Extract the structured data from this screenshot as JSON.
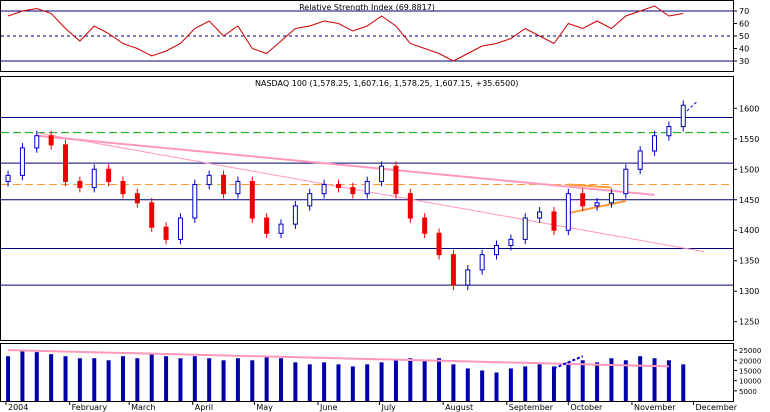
{
  "chart_data": [
    {
      "panel": "rsi",
      "type": "line",
      "title": "Relative Strength Index (69.8817)",
      "ylim": [
        22,
        78
      ],
      "y_ticks": [
        30,
        40,
        50,
        60,
        70
      ],
      "reference_lines": [
        {
          "value": 70,
          "style": "solid"
        },
        {
          "value": 50,
          "style": "dashed"
        },
        {
          "value": 30,
          "style": "solid"
        }
      ],
      "grid": false,
      "series": [
        {
          "color": "#cc0000",
          "x": [
            "2004-01-02",
            "2004-01-09",
            "2004-01-16",
            "2004-01-23",
            "2004-01-30",
            "2004-02-06",
            "2004-02-13",
            "2004-02-20",
            "2004-02-27",
            "2004-03-05",
            "2004-03-12",
            "2004-03-19",
            "2004-03-26",
            "2004-04-02",
            "2004-04-09",
            "2004-04-16",
            "2004-04-23",
            "2004-04-30",
            "2004-05-07",
            "2004-05-14",
            "2004-05-21",
            "2004-05-28",
            "2004-06-04",
            "2004-06-11",
            "2004-06-18",
            "2004-06-25",
            "2004-07-02",
            "2004-07-09",
            "2004-07-16",
            "2004-07-23",
            "2004-07-30",
            "2004-08-06",
            "2004-08-13",
            "2004-08-20",
            "2004-08-27",
            "2004-09-03",
            "2004-09-10",
            "2004-09-17",
            "2004-09-24",
            "2004-10-01",
            "2004-10-08",
            "2004-10-15",
            "2004-10-22",
            "2004-10-29",
            "2004-11-05",
            "2004-11-12",
            "2004-11-19",
            "2004-11-26"
          ],
          "values": [
            66,
            70,
            72,
            68,
            56,
            46,
            58,
            52,
            44,
            40,
            34,
            38,
            44,
            56,
            62,
            50,
            58,
            40,
            36,
            46,
            56,
            58,
            62,
            60,
            54,
            58,
            66,
            58,
            44,
            40,
            36,
            30,
            36,
            42,
            44,
            48,
            56,
            50,
            44,
            60,
            56,
            62,
            56,
            66,
            70,
            74,
            66,
            68
          ]
        }
      ]
    },
    {
      "panel": "price",
      "type": "candlestick",
      "title": "NASDAQ 100 (1,578.25, 1,607.16, 1,578.25, 1,607.15, +35.6500)",
      "ylim": [
        1220,
        1630
      ],
      "y_ticks": [
        1250,
        1300,
        1350,
        1400,
        1450,
        1500,
        1550,
        1600
      ],
      "reference_lines": [
        {
          "value": 1585,
          "color": "#000080",
          "style": "solid"
        },
        {
          "value": 1560,
          "color": "#00aa00",
          "style": "dashed"
        },
        {
          "value": 1510,
          "color": "#000080",
          "style": "solid"
        },
        {
          "value": 1475,
          "color": "#ff9933",
          "style": "dashed"
        },
        {
          "value": 1450,
          "color": "#000080",
          "style": "solid"
        },
        {
          "value": 1370,
          "color": "#000080",
          "style": "solid"
        },
        {
          "value": 1310,
          "color": "#000080",
          "style": "solid"
        }
      ],
      "trendlines": [
        {
          "from": [
            "2004-01-16",
            1555
          ],
          "to": [
            "2004-11-12",
            1458
          ],
          "color": "#ff99bb",
          "style": "thick"
        },
        {
          "from": [
            "2004-01-16",
            1560
          ],
          "to": [
            "2004-12-06",
            1365
          ],
          "color": "#ff99bb",
          "style": "thin"
        },
        {
          "from": [
            "2004-10-01",
            1475
          ],
          "to": [
            "2004-10-22",
            1470
          ],
          "color": "#ff9933",
          "style": "thick"
        },
        {
          "from": [
            "2004-10-01",
            1428
          ],
          "to": [
            "2004-10-29",
            1448
          ],
          "color": "#ff9933",
          "style": "thick"
        },
        {
          "from": [
            "2004-11-26",
            1590
          ],
          "to": [
            "2004-12-03",
            1612
          ],
          "color": "#0000cc",
          "style": "dashed"
        }
      ],
      "x": [
        "2004-01-02",
        "2004-01-09",
        "2004-01-16",
        "2004-01-23",
        "2004-01-30",
        "2004-02-06",
        "2004-02-13",
        "2004-02-20",
        "2004-02-27",
        "2004-03-05",
        "2004-03-12",
        "2004-03-19",
        "2004-03-26",
        "2004-04-02",
        "2004-04-09",
        "2004-04-16",
        "2004-04-23",
        "2004-04-30",
        "2004-05-07",
        "2004-05-14",
        "2004-05-21",
        "2004-05-28",
        "2004-06-04",
        "2004-06-11",
        "2004-06-18",
        "2004-06-25",
        "2004-07-02",
        "2004-07-09",
        "2004-07-16",
        "2004-07-23",
        "2004-07-30",
        "2004-08-06",
        "2004-08-13",
        "2004-08-20",
        "2004-08-27",
        "2004-09-03",
        "2004-09-10",
        "2004-09-17",
        "2004-09-24",
        "2004-10-01",
        "2004-10-08",
        "2004-10-15",
        "2004-10-22",
        "2004-10-29",
        "2004-11-05",
        "2004-11-12",
        "2004-11-19",
        "2004-11-26"
      ],
      "close": [
        1490,
        1535,
        1555,
        1540,
        1480,
        1470,
        1500,
        1480,
        1460,
        1445,
        1405,
        1385,
        1420,
        1475,
        1490,
        1460,
        1480,
        1420,
        1395,
        1410,
        1440,
        1460,
        1475,
        1470,
        1460,
        1480,
        1505,
        1460,
        1420,
        1395,
        1360,
        1310,
        1335,
        1360,
        1375,
        1385,
        1420,
        1430,
        1400,
        1460,
        1440,
        1445,
        1460,
        1500,
        1530,
        1555,
        1570,
        1605
      ],
      "series": [
        {
          "name": "NASDAQ 100"
        }
      ]
    },
    {
      "panel": "volume",
      "type": "bar",
      "ylim": [
        0,
        28000
      ],
      "y_ticks": [
        5000,
        10000,
        15000,
        20000,
        25000
      ],
      "x": [
        "2004-01-02",
        "2004-01-09",
        "2004-01-16",
        "2004-01-23",
        "2004-01-30",
        "2004-02-06",
        "2004-02-13",
        "2004-02-20",
        "2004-02-27",
        "2004-03-05",
        "2004-03-12",
        "2004-03-19",
        "2004-03-26",
        "2004-04-02",
        "2004-04-09",
        "2004-04-16",
        "2004-04-23",
        "2004-04-30",
        "2004-05-07",
        "2004-05-14",
        "2004-05-21",
        "2004-05-28",
        "2004-06-04",
        "2004-06-11",
        "2004-06-18",
        "2004-06-25",
        "2004-07-02",
        "2004-07-09",
        "2004-07-16",
        "2004-07-23",
        "2004-07-30",
        "2004-08-06",
        "2004-08-13",
        "2004-08-20",
        "2004-08-27",
        "2004-09-03",
        "2004-09-10",
        "2004-09-17",
        "2004-09-24",
        "2004-10-01",
        "2004-10-08",
        "2004-10-15",
        "2004-10-22",
        "2004-10-29",
        "2004-11-05",
        "2004-11-12",
        "2004-11-19",
        "2004-11-26"
      ],
      "values": [
        22000,
        25000,
        24000,
        23000,
        22000,
        21000,
        21000,
        20000,
        22000,
        21000,
        23000,
        22000,
        21000,
        22000,
        21000,
        20000,
        21000,
        20000,
        22000,
        21000,
        19000,
        18000,
        19000,
        18000,
        17000,
        18000,
        19000,
        20000,
        21000,
        20000,
        21000,
        18000,
        16000,
        15000,
        14000,
        16000,
        17000,
        18000,
        17000,
        19000,
        20000,
        19000,
        21000,
        20000,
        22000,
        21000,
        20000,
        18000
      ],
      "trendlines": [
        {
          "from": [
            "2004-01-02",
            25000
          ],
          "to": [
            "2004-11-19",
            17000
          ],
          "color": "#ff99bb"
        },
        {
          "from": [
            "2004-09-24",
            16000
          ],
          "to": [
            "2004-10-08",
            22000
          ],
          "color": "#0000cc",
          "style": "dashed"
        }
      ]
    }
  ],
  "x_axis": {
    "labels": [
      "2004",
      "February",
      "March",
      "April",
      "May",
      "June",
      "July",
      "August",
      "September",
      "October",
      "November",
      "December"
    ]
  },
  "colors": {
    "up": "#0000cc",
    "down": "#ee0000",
    "panel_border": "#000000",
    "rsi_line": "#cc0000"
  }
}
